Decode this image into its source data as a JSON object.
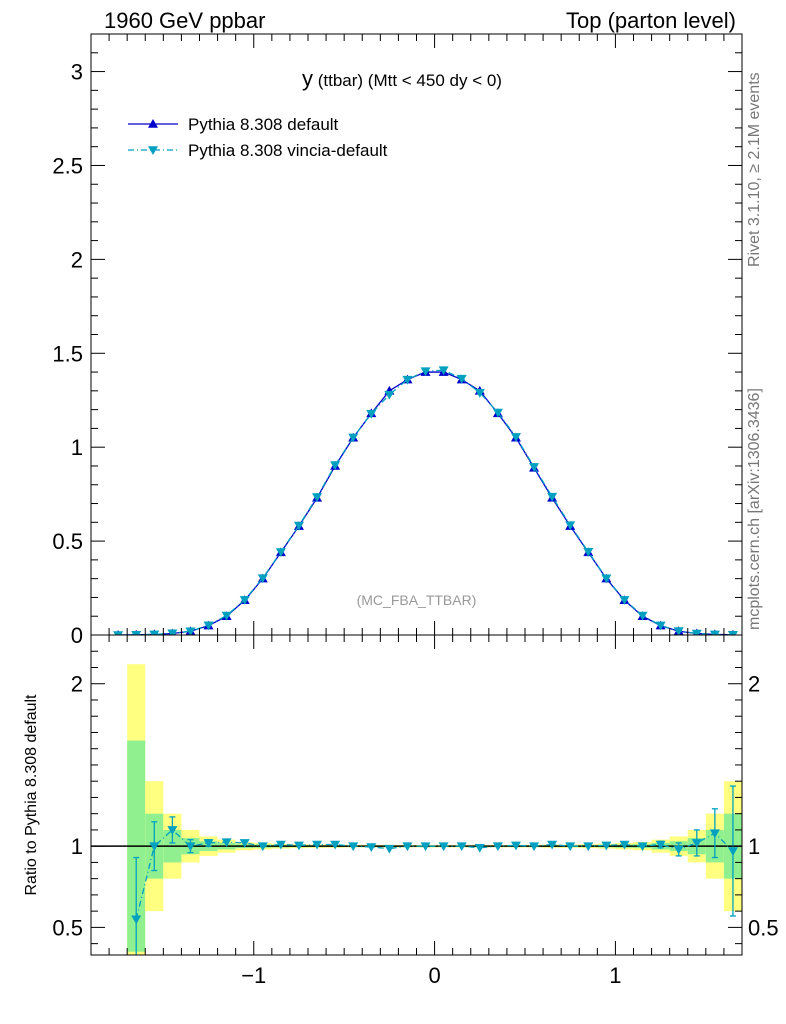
{
  "header": {
    "left": "1960 GeV ppbar",
    "right": "Top (parton level)"
  },
  "side_labels": {
    "rivet": "Rivet 3.1.10, ≥ 2.1M events",
    "mcplots": "mcplots.cern.ch [arXiv:1306.3436]"
  },
  "chart_data": [
    {
      "type": "line",
      "panel": "main",
      "title_main": "y",
      "title_rest": " (ttbar) (Mtt < 450 dy < 0)",
      "watermark": "(MC_FBA_TTBAR)",
      "xlim": [
        -1.9,
        1.7
      ],
      "ylim": [
        0,
        3.2
      ],
      "yticks": [
        0,
        0.5,
        1,
        1.5,
        2,
        2.5,
        3
      ],
      "ytick_labels": [
        "0",
        "0.5",
        "1",
        "1.5",
        "2",
        "2.5",
        "3"
      ],
      "legend_position": "top-left",
      "x": [
        -1.75,
        -1.65,
        -1.55,
        -1.45,
        -1.35,
        -1.25,
        -1.15,
        -1.05,
        -0.95,
        -0.85,
        -0.75,
        -0.65,
        -0.55,
        -0.45,
        -0.35,
        -0.25,
        -0.15,
        -0.05,
        0.05,
        0.15,
        0.25,
        0.35,
        0.45,
        0.55,
        0.65,
        0.75,
        0.85,
        0.95,
        1.05,
        1.15,
        1.25,
        1.35,
        1.45,
        1.55,
        1.65
      ],
      "series": [
        {
          "name": "Pythia 8.308 default",
          "color": "#0000cc",
          "marker": "triangle-up",
          "values": [
            0.0,
            0.001,
            0.003,
            0.008,
            0.02,
            0.05,
            0.1,
            0.185,
            0.3,
            0.44,
            0.58,
            0.73,
            0.9,
            1.05,
            1.18,
            1.3,
            1.36,
            1.4,
            1.4,
            1.36,
            1.3,
            1.18,
            1.05,
            0.89,
            0.73,
            0.58,
            0.44,
            0.3,
            0.185,
            0.1,
            0.05,
            0.02,
            0.008,
            0.003,
            0.001
          ]
        },
        {
          "name": "Pythia 8.308 vincia-default",
          "color": "#00a0c0",
          "marker": "triangle-down",
          "values": [
            0.0,
            0.001,
            0.003,
            0.009,
            0.02,
            0.052,
            0.104,
            0.187,
            0.303,
            0.442,
            0.583,
            0.735,
            0.905,
            1.052,
            1.178,
            1.28,
            1.36,
            1.405,
            1.41,
            1.365,
            1.29,
            1.185,
            1.055,
            0.895,
            0.737,
            0.585,
            0.443,
            0.302,
            0.187,
            0.104,
            0.051,
            0.021,
            0.008,
            0.003,
            0.001
          ]
        }
      ]
    },
    {
      "type": "line",
      "panel": "ratio",
      "ylabel": "Ratio to Pythia 8.308 default",
      "xlim": [
        -1.9,
        1.7
      ],
      "ylim": [
        0.33,
        2.3
      ],
      "yticks": [
        0.5,
        1,
        2
      ],
      "ytick_labels": [
        "0.5",
        "1",
        "2"
      ],
      "xticks": [
        -1,
        0,
        1
      ],
      "xtick_labels": [
        "−1",
        "0",
        "1"
      ],
      "x": [
        -1.65,
        -1.55,
        -1.45,
        -1.35,
        -1.25,
        -1.15,
        -1.05,
        -0.95,
        -0.85,
        -0.75,
        -0.65,
        -0.55,
        -0.45,
        -0.35,
        -0.25,
        -0.15,
        -0.05,
        0.05,
        0.15,
        0.25,
        0.35,
        0.45,
        0.55,
        0.65,
        0.75,
        0.85,
        0.95,
        1.05,
        1.15,
        1.25,
        1.35,
        1.45,
        1.55,
        1.65
      ],
      "bands": {
        "bin_edges": [
          -1.7,
          -1.6,
          -1.5,
          -1.4,
          -1.3,
          -1.2,
          -1.1,
          -1.0,
          -0.9,
          -0.8,
          -0.7,
          -0.6,
          -0.5,
          -0.4,
          -0.3,
          -0.2,
          -0.1,
          0.0,
          0.1,
          0.2,
          0.3,
          0.4,
          0.5,
          0.6,
          0.7,
          0.8,
          0.9,
          1.0,
          1.1,
          1.2,
          1.3,
          1.4,
          1.5,
          1.6,
          1.7
        ],
        "yellow_halfwidth": [
          1.12,
          0.4,
          0.2,
          0.1,
          0.06,
          0.04,
          0.025,
          0.02,
          0.015,
          0.012,
          0.01,
          0.01,
          0.008,
          0.008,
          0.008,
          0.008,
          0.008,
          0.008,
          0.008,
          0.008,
          0.008,
          0.008,
          0.008,
          0.01,
          0.01,
          0.012,
          0.015,
          0.02,
          0.025,
          0.04,
          0.06,
          0.1,
          0.2,
          0.4,
          0.92
        ],
        "green_halfwidth": [
          0.65,
          0.2,
          0.1,
          0.05,
          0.03,
          0.02,
          0.012,
          0.01,
          0.008,
          0.006,
          0.005,
          0.005,
          0.004,
          0.004,
          0.004,
          0.004,
          0.004,
          0.004,
          0.004,
          0.004,
          0.004,
          0.004,
          0.004,
          0.005,
          0.005,
          0.006,
          0.008,
          0.01,
          0.012,
          0.02,
          0.03,
          0.05,
          0.1,
          0.2,
          0.45
        ]
      },
      "series": [
        {
          "name": "Pythia 8.308 vincia-default",
          "color": "#00a0c0",
          "marker": "triangle-down",
          "values": [
            0.55,
            1.0,
            1.1,
            1.0,
            1.02,
            1.025,
            1.02,
            1.0,
            1.01,
            1.005,
            1.01,
            1.01,
            1.0,
            0.995,
            0.985,
            1.0,
            1.0,
            1.0,
            1.0,
            0.99,
            1.0,
            1.005,
            1.0,
            1.01,
            1.0,
            1.0,
            1.005,
            1.01,
            1.0,
            1.01,
            0.98,
            1.02,
            1.08,
            0.97
          ],
          "errors": [
            0.38,
            0.15,
            0.08,
            0.04,
            0.02,
            0.01,
            0.008,
            0.006,
            0.005,
            0.004,
            0.004,
            0.004,
            0.004,
            0.004,
            0.004,
            0.004,
            0.004,
            0.004,
            0.004,
            0.004,
            0.004,
            0.004,
            0.004,
            0.004,
            0.004,
            0.005,
            0.006,
            0.008,
            0.01,
            0.02,
            0.04,
            0.08,
            0.15,
            0.4
          ]
        }
      ]
    }
  ]
}
